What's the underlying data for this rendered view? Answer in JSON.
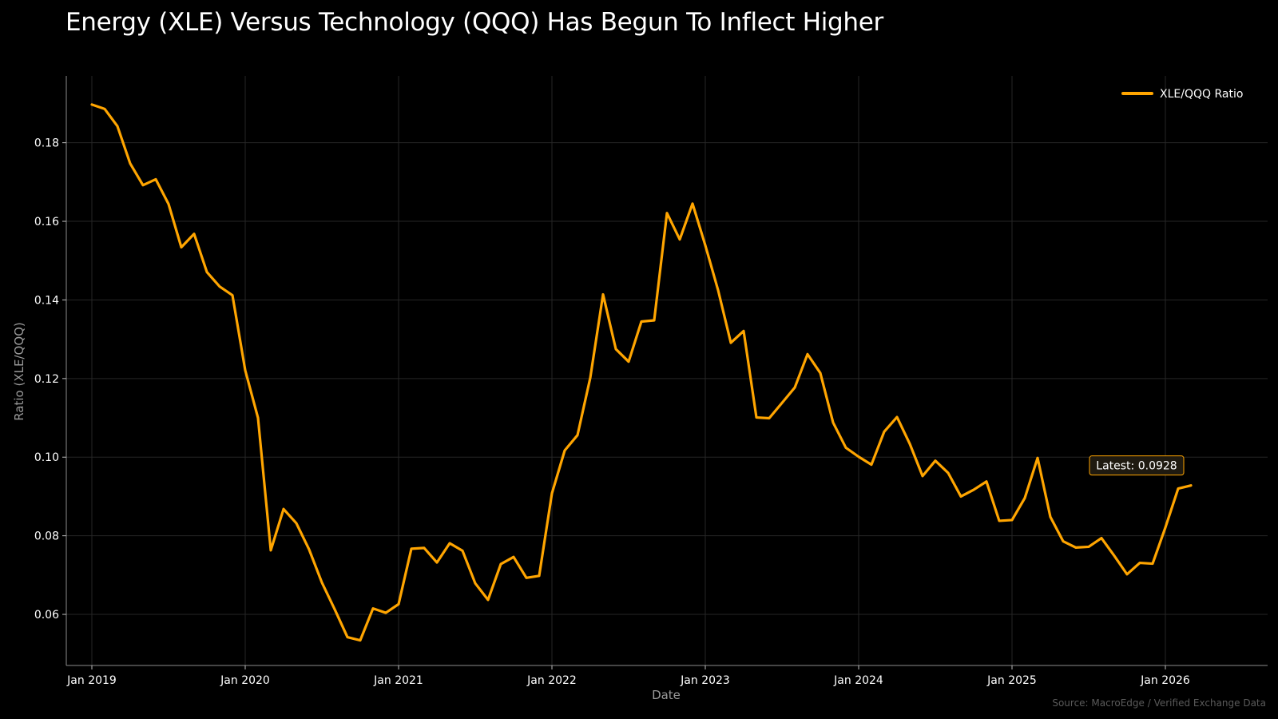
{
  "chart_data": {
    "type": "line",
    "title": "Energy (XLE) Versus Technology (QQQ) Has Begun To Inflect Higher",
    "xlabel": "Date",
    "ylabel": "Ratio (XLE/QQQ)",
    "source": "Source: MacroEdge / Verified Exchange Data",
    "legend_position": "top-right",
    "grid": true,
    "line_color": "#FFA500",
    "background_color": "#000000",
    "ylim": [
      0.047,
      0.197
    ],
    "xlim": [
      "2018-11",
      "2026-09"
    ],
    "y_ticks": [
      0.06,
      0.08,
      0.1,
      0.12,
      0.14,
      0.16,
      0.18
    ],
    "y_tick_labels": [
      "0.06",
      "0.08",
      "0.10",
      "0.12",
      "0.14",
      "0.16",
      "0.18"
    ],
    "x_ticks": [
      "2019-01",
      "2020-01",
      "2021-01",
      "2022-01",
      "2023-01",
      "2024-01",
      "2025-01",
      "2026-01"
    ],
    "x_tick_labels": [
      "Jan 2019",
      "Jan 2020",
      "Jan 2021",
      "Jan 2022",
      "Jan 2023",
      "Jan 2024",
      "Jan 2025",
      "Jan 2026"
    ],
    "series": [
      {
        "name": "XLE/QQQ Ratio",
        "x": [
          "2019-01",
          "2019-02",
          "2019-03",
          "2019-04",
          "2019-05",
          "2019-06",
          "2019-07",
          "2019-08",
          "2019-09",
          "2019-10",
          "2019-11",
          "2019-12",
          "2020-01",
          "2020-02",
          "2020-03",
          "2020-04",
          "2020-05",
          "2020-06",
          "2020-07",
          "2020-08",
          "2020-09",
          "2020-10",
          "2020-11",
          "2020-12",
          "2021-01",
          "2021-02",
          "2021-03",
          "2021-04",
          "2021-05",
          "2021-06",
          "2021-07",
          "2021-08",
          "2021-09",
          "2021-10",
          "2021-11",
          "2021-12",
          "2022-01",
          "2022-02",
          "2022-03",
          "2022-04",
          "2022-05",
          "2022-06",
          "2022-07",
          "2022-08",
          "2022-09",
          "2022-10",
          "2022-11",
          "2022-12",
          "2023-01",
          "2023-02",
          "2023-03",
          "2023-04",
          "2023-05",
          "2023-06",
          "2023-07",
          "2023-08",
          "2023-09",
          "2023-10",
          "2023-11",
          "2023-12",
          "2024-01",
          "2024-02",
          "2024-03",
          "2024-04",
          "2024-05",
          "2024-06",
          "2024-07",
          "2024-08",
          "2024-09",
          "2024-10",
          "2024-11",
          "2024-12",
          "2025-01",
          "2025-02",
          "2025-03",
          "2025-04",
          "2025-05",
          "2025-06",
          "2025-07",
          "2025-08",
          "2025-09",
          "2025-10",
          "2025-11",
          "2025-12",
          "2026-01",
          "2026-02",
          "2026-03"
        ],
        "values": [
          0.1897,
          0.1886,
          0.1842,
          0.1747,
          0.1692,
          0.1707,
          0.1644,
          0.1534,
          0.1568,
          0.1471,
          0.1434,
          0.1412,
          0.1221,
          0.11,
          0.0763,
          0.0868,
          0.0832,
          0.0765,
          0.0681,
          0.0613,
          0.0542,
          0.0534,
          0.0615,
          0.0604,
          0.0626,
          0.0767,
          0.0769,
          0.0732,
          0.0781,
          0.0762,
          0.0679,
          0.0637,
          0.0728,
          0.0746,
          0.0693,
          0.0698,
          0.0908,
          0.1017,
          0.1056,
          0.1202,
          0.1414,
          0.1275,
          0.1243,
          0.1345,
          0.1348,
          0.1621,
          0.1554,
          0.1645,
          0.1539,
          0.1425,
          0.1291,
          0.1321,
          0.1101,
          0.1099,
          0.1138,
          0.1177,
          0.1262,
          0.1214,
          0.1088,
          0.1024,
          0.1001,
          0.0981,
          0.1065,
          0.1102,
          0.1034,
          0.0952,
          0.0991,
          0.096,
          0.09,
          0.0917,
          0.0938,
          0.0838,
          0.084,
          0.0896,
          0.0998,
          0.0848,
          0.0786,
          0.077,
          0.0772,
          0.0794,
          0.0749,
          0.0702,
          0.0731,
          0.0729,
          0.0821,
          0.092,
          0.0928
        ]
      }
    ],
    "annotations": [
      {
        "text": "Latest: 0.0928",
        "x": "2026-03",
        "y": 0.0928
      }
    ]
  }
}
